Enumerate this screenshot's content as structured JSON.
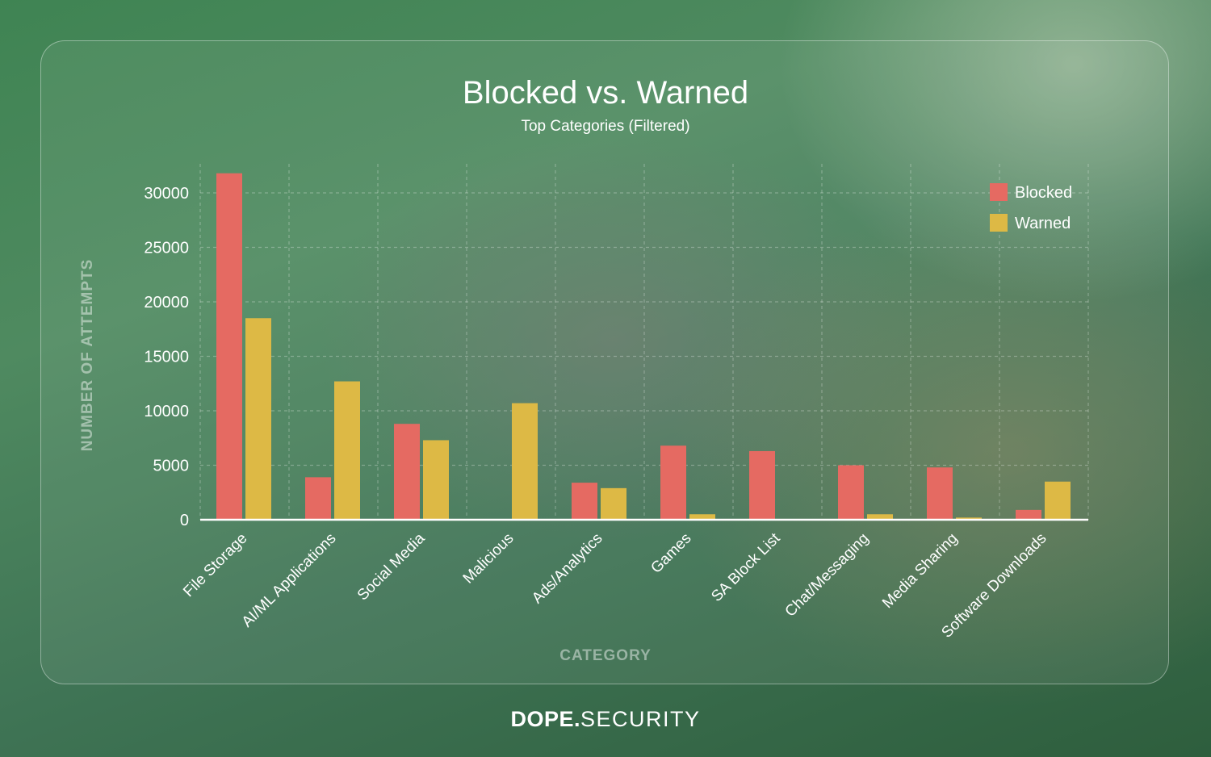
{
  "chart_data": {
    "type": "bar",
    "title": "Blocked vs. Warned",
    "subtitle": "Top Categories (Filtered)",
    "xlabel": "CATEGORY",
    "ylabel": "NUMBER OF ATTEMPTS",
    "ylim": [
      0,
      32500
    ],
    "yticks": [
      0,
      5000,
      10000,
      15000,
      20000,
      25000,
      30000
    ],
    "grid": true,
    "legend_position": "top-right",
    "categories": [
      "File Storage",
      "AI/ML Applications",
      "Social Media",
      "Malicious",
      "Ads/Analytics",
      "Games",
      "SA Block List",
      "Chat/Messaging",
      "Media Sharing",
      "Software Downloads"
    ],
    "series": [
      {
        "name": "Blocked",
        "color": "#e56a62",
        "values": [
          31800,
          3900,
          8800,
          0,
          3400,
          6800,
          6300,
          5000,
          4800,
          900
        ]
      },
      {
        "name": "Warned",
        "color": "#ddb945",
        "values": [
          18500,
          12700,
          7300,
          10700,
          2900,
          500,
          0,
          500,
          200,
          3500
        ]
      }
    ]
  },
  "brand": {
    "bold": "DOPE.",
    "light": "SECURITY"
  }
}
